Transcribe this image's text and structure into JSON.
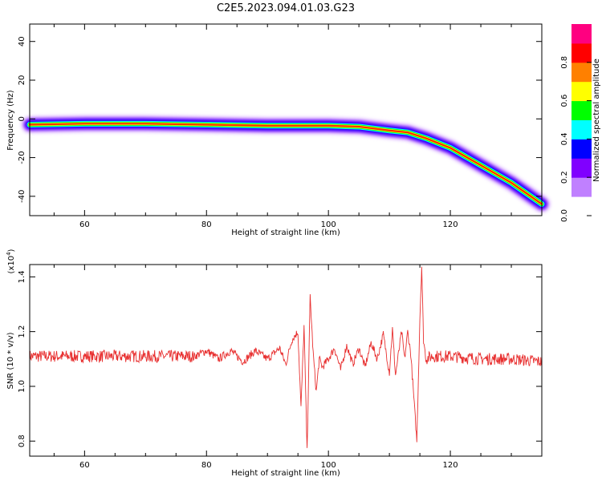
{
  "title": "C2E5.2023.094.01.03.G23",
  "chart_data": [
    {
      "type": "heatmap",
      "xlabel": "Height of straight line (km)",
      "ylabel": "Frequency (Hz)",
      "xlim": [
        51,
        135
      ],
      "ylim": [
        -50,
        49
      ],
      "xticks": [
        60,
        80,
        100,
        120
      ],
      "yticks": [
        -40,
        -20,
        0,
        20,
        40
      ],
      "ridge": [
        {
          "x": 51,
          "y": -3
        },
        {
          "x": 60,
          "y": -2.5
        },
        {
          "x": 70,
          "y": -2.5
        },
        {
          "x": 80,
          "y": -3
        },
        {
          "x": 90,
          "y": -3.5
        },
        {
          "x": 100,
          "y": -3.5
        },
        {
          "x": 105,
          "y": -4
        },
        {
          "x": 110,
          "y": -6
        },
        {
          "x": 113,
          "y": -7
        },
        {
          "x": 116,
          "y": -10
        },
        {
          "x": 120,
          "y": -15
        },
        {
          "x": 125,
          "y": -24
        },
        {
          "x": 130,
          "y": -33
        },
        {
          "x": 135,
          "y": -44
        }
      ],
      "colorbar": {
        "label": "Normalized spectral amplitude",
        "range": [
          0.0,
          1.0
        ],
        "ticks": [
          0.0,
          0.2,
          0.4,
          0.6,
          0.8
        ],
        "colors": [
          "#ffffff",
          "#c080ff",
          "#8000ff",
          "#0000ff",
          "#00ffff",
          "#00ff00",
          "#ffff00",
          "#ff8000",
          "#ff0000",
          "#ff0080"
        ]
      }
    },
    {
      "type": "line",
      "xlabel": "Height of straight line (km)",
      "ylabel": "SNR (10 * v/v)",
      "yunit": "(x10",
      "yunit_exp": "4",
      "yunit_close": ")",
      "xlim": [
        51,
        135
      ],
      "ylim": [
        0.745,
        1.445
      ],
      "xticks": [
        60,
        80,
        100,
        120
      ],
      "yticks": [
        0.8,
        1.0,
        1.2,
        1.4
      ],
      "series": [
        {
          "color": "#e83030",
          "x": [
            51,
            60,
            70,
            78,
            80,
            82,
            84,
            86,
            88,
            90,
            92,
            93,
            94,
            95,
            95.5,
            96,
            96.5,
            97,
            97.5,
            98,
            98.5,
            99,
            100,
            101,
            102,
            103,
            104,
            105,
            106,
            107,
            108,
            109,
            110,
            110.5,
            111,
            112,
            112.5,
            113,
            113.5,
            114,
            114.5,
            115,
            115.3,
            115.6,
            116,
            117,
            120,
            125,
            130,
            135
          ],
          "y": [
            1.11,
            1.11,
            1.11,
            1.11,
            1.13,
            1.1,
            1.13,
            1.09,
            1.13,
            1.1,
            1.14,
            1.08,
            1.17,
            1.2,
            0.92,
            1.22,
            0.76,
            1.33,
            1.12,
            0.98,
            1.1,
            1.07,
            1.1,
            1.14,
            1.06,
            1.15,
            1.08,
            1.14,
            1.07,
            1.16,
            1.1,
            1.19,
            1.05,
            1.21,
            1.04,
            1.2,
            1.1,
            1.2,
            1.12,
            0.96,
            0.8,
            1.25,
            1.44,
            1.17,
            1.1,
            1.11,
            1.11,
            1.1,
            1.1,
            1.09
          ]
        }
      ]
    }
  ]
}
